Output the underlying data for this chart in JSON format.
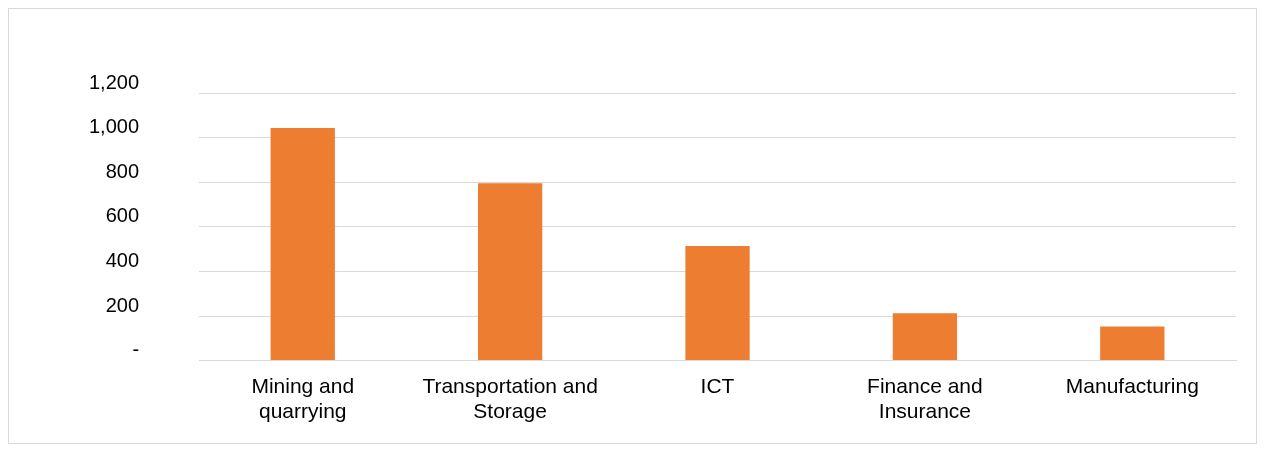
{
  "chart_data": {
    "type": "bar",
    "categories": [
      "Mining and quarrying",
      "Transportation and Storage",
      "ICT",
      "Finance and Insurance",
      "Manufacturing"
    ],
    "values": [
      1043,
      795,
      514,
      212,
      153
    ],
    "color": "#ed7d31",
    "ylim": [
      0,
      1200
    ],
    "yticks": [
      {
        "value": 0,
        "label": "-"
      },
      200,
      400,
      600,
      800,
      {
        "value": 1000,
        "label": "1,000"
      },
      {
        "value": 1200,
        "label": "1,200"
      }
    ],
    "grid": "y",
    "legend": false
  }
}
